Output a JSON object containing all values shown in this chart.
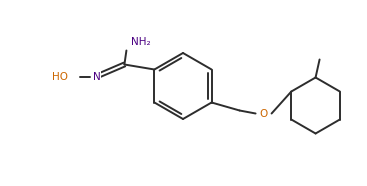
{
  "bg_color": "#ffffff",
  "line_color": "#2d2d2d",
  "atom_colors": {
    "N": "#4b0082",
    "O": "#cc6600",
    "C": "#2d2d2d"
  },
  "figsize": [
    3.67,
    1.86
  ],
  "dpi": 100,
  "lw": 1.4
}
